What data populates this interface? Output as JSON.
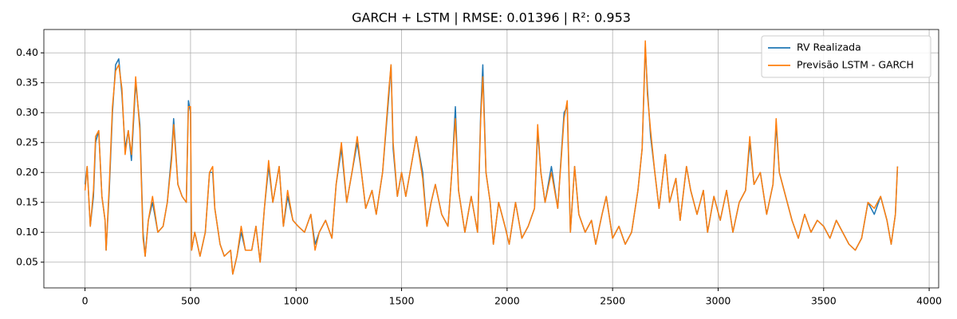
{
  "chart_data": {
    "type": "line",
    "title": "GARCH + LSTM | RMSE: 0.01396 | R²: 0.953",
    "x": [
      0,
      10,
      25,
      40,
      50,
      65,
      80,
      95,
      100,
      115,
      130,
      145,
      160,
      175,
      190,
      205,
      220,
      240,
      260,
      275,
      285,
      300,
      320,
      345,
      370,
      390,
      410,
      420,
      440,
      460,
      480,
      490,
      500,
      505,
      520,
      545,
      570,
      590,
      605,
      615,
      640,
      660,
      690,
      700,
      720,
      740,
      760,
      790,
      810,
      830,
      850,
      870,
      890,
      910,
      920,
      940,
      960,
      985,
      1010,
      1040,
      1070,
      1090,
      1110,
      1140,
      1170,
      1190,
      1215,
      1240,
      1265,
      1290,
      1310,
      1330,
      1360,
      1380,
      1410,
      1440,
      1450,
      1460,
      1480,
      1500,
      1520,
      1545,
      1570,
      1600,
      1620,
      1640,
      1660,
      1690,
      1720,
      1740,
      1755,
      1770,
      1800,
      1830,
      1860,
      1875,
      1885,
      1900,
      1920,
      1935,
      1960,
      1990,
      2010,
      2040,
      2070,
      2100,
      2130,
      2145,
      2160,
      2180,
      2210,
      2240,
      2270,
      2285,
      2300,
      2320,
      2340,
      2370,
      2400,
      2420,
      2450,
      2470,
      2500,
      2530,
      2560,
      2590,
      2620,
      2640,
      2655,
      2665,
      2680,
      2700,
      2720,
      2750,
      2770,
      2800,
      2820,
      2850,
      2870,
      2900,
      2930,
      2950,
      2980,
      3010,
      3040,
      3070,
      3100,
      3130,
      3150,
      3170,
      3200,
      3230,
      3260,
      3275,
      3290,
      3320,
      3350,
      3380,
      3410,
      3440,
      3470,
      3500,
      3530,
      3560,
      3590,
      3620,
      3650,
      3680,
      3710,
      3740,
      3770,
      3800,
      3820,
      3840,
      3850
    ],
    "series": [
      {
        "name": "RV Realizada",
        "color": "#1f77b4",
        "values": [
          0.18,
          0.21,
          0.11,
          0.16,
          0.25,
          0.27,
          0.16,
          0.12,
          0.07,
          0.17,
          0.3,
          0.38,
          0.39,
          0.33,
          0.24,
          0.27,
          0.22,
          0.35,
          0.28,
          0.1,
          0.06,
          0.12,
          0.15,
          0.1,
          0.11,
          0.15,
          0.23,
          0.29,
          0.18,
          0.16,
          0.15,
          0.32,
          0.3,
          0.07,
          0.1,
          0.06,
          0.1,
          0.2,
          0.2,
          0.14,
          0.08,
          0.06,
          0.07,
          0.03,
          0.06,
          0.1,
          0.07,
          0.07,
          0.11,
          0.05,
          0.14,
          0.21,
          0.15,
          0.19,
          0.21,
          0.11,
          0.16,
          0.12,
          0.11,
          0.1,
          0.13,
          0.08,
          0.1,
          0.12,
          0.09,
          0.18,
          0.24,
          0.15,
          0.2,
          0.25,
          0.2,
          0.14,
          0.17,
          0.13,
          0.2,
          0.33,
          0.38,
          0.24,
          0.16,
          0.2,
          0.16,
          0.21,
          0.26,
          0.2,
          0.11,
          0.15,
          0.18,
          0.13,
          0.11,
          0.21,
          0.31,
          0.17,
          0.1,
          0.16,
          0.1,
          0.3,
          0.38,
          0.2,
          0.15,
          0.08,
          0.15,
          0.11,
          0.08,
          0.15,
          0.09,
          0.11,
          0.14,
          0.27,
          0.2,
          0.15,
          0.21,
          0.14,
          0.3,
          0.31,
          0.1,
          0.21,
          0.13,
          0.1,
          0.12,
          0.08,
          0.13,
          0.16,
          0.09,
          0.11,
          0.08,
          0.1,
          0.17,
          0.24,
          0.41,
          0.34,
          0.26,
          0.2,
          0.14,
          0.23,
          0.15,
          0.19,
          0.12,
          0.21,
          0.17,
          0.13,
          0.17,
          0.1,
          0.16,
          0.12,
          0.17,
          0.1,
          0.15,
          0.17,
          0.25,
          0.18,
          0.2,
          0.13,
          0.18,
          0.28,
          0.2,
          0.16,
          0.12,
          0.09,
          0.13,
          0.1,
          0.12,
          0.11,
          0.09,
          0.12,
          0.1,
          0.08,
          0.07,
          0.09,
          0.15,
          0.13,
          0.16,
          0.12,
          0.08,
          0.13,
          0.21
        ]
      },
      {
        "name": "Previsão LSTM - GARCH",
        "color": "#ff7f0e",
        "values": [
          0.17,
          0.21,
          0.11,
          0.17,
          0.26,
          0.27,
          0.16,
          0.12,
          0.07,
          0.18,
          0.31,
          0.37,
          0.38,
          0.34,
          0.23,
          0.27,
          0.23,
          0.36,
          0.27,
          0.09,
          0.06,
          0.12,
          0.16,
          0.1,
          0.11,
          0.15,
          0.22,
          0.28,
          0.18,
          0.16,
          0.15,
          0.31,
          0.31,
          0.07,
          0.1,
          0.06,
          0.1,
          0.2,
          0.21,
          0.14,
          0.08,
          0.06,
          0.07,
          0.03,
          0.06,
          0.11,
          0.07,
          0.07,
          0.11,
          0.05,
          0.14,
          0.22,
          0.15,
          0.19,
          0.21,
          0.11,
          0.17,
          0.12,
          0.11,
          0.1,
          0.13,
          0.07,
          0.1,
          0.12,
          0.09,
          0.18,
          0.25,
          0.15,
          0.2,
          0.26,
          0.2,
          0.14,
          0.17,
          0.13,
          0.2,
          0.34,
          0.38,
          0.25,
          0.16,
          0.2,
          0.16,
          0.21,
          0.26,
          0.19,
          0.11,
          0.15,
          0.18,
          0.13,
          0.11,
          0.21,
          0.29,
          0.17,
          0.1,
          0.16,
          0.1,
          0.29,
          0.36,
          0.2,
          0.15,
          0.08,
          0.15,
          0.11,
          0.08,
          0.15,
          0.09,
          0.11,
          0.14,
          0.28,
          0.2,
          0.15,
          0.2,
          0.14,
          0.29,
          0.32,
          0.1,
          0.21,
          0.13,
          0.1,
          0.12,
          0.08,
          0.13,
          0.16,
          0.09,
          0.11,
          0.08,
          0.1,
          0.17,
          0.24,
          0.42,
          0.33,
          0.27,
          0.2,
          0.14,
          0.23,
          0.15,
          0.19,
          0.12,
          0.21,
          0.17,
          0.13,
          0.17,
          0.1,
          0.16,
          0.12,
          0.17,
          0.1,
          0.15,
          0.17,
          0.26,
          0.18,
          0.2,
          0.13,
          0.18,
          0.29,
          0.2,
          0.16,
          0.12,
          0.09,
          0.13,
          0.1,
          0.12,
          0.11,
          0.09,
          0.12,
          0.1,
          0.08,
          0.07,
          0.09,
          0.15,
          0.14,
          0.16,
          0.12,
          0.08,
          0.13,
          0.21
        ]
      }
    ],
    "xlim": [
      -195,
      4045
    ],
    "ylim": [
      0.007,
      0.439
    ],
    "xticks": [
      0,
      500,
      1000,
      1500,
      2000,
      2500,
      3000,
      3500,
      4000
    ],
    "yticks": [
      0.05,
      {
        "value": 0.1,
        "label": "0.10"
      },
      0.15,
      {
        "value": 0.2,
        "label": "0.20"
      },
      0.25,
      {
        "value": 0.3,
        "label": "0.30"
      },
      0.35,
      {
        "value": 0.4,
        "label": "0.40"
      }
    ],
    "grid": true,
    "legend": "upper right"
  }
}
